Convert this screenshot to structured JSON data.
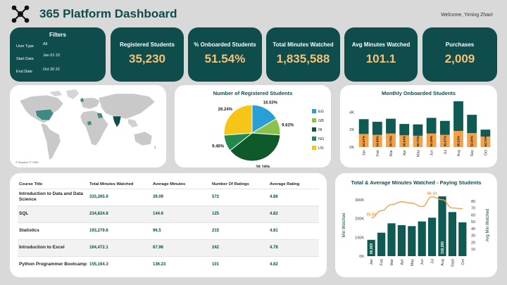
{
  "header": {
    "title": "365 Platform Dashboard",
    "welcome": "Welcome, Yiming Zhao!"
  },
  "filters": {
    "title": "Filters",
    "items": [
      {
        "label": "User Type",
        "value": "All"
      },
      {
        "label": "Start Date",
        "value": "Jan 01 22"
      },
      {
        "label": "End Date",
        "value": "Oct 20 22"
      }
    ]
  },
  "kpis": [
    {
      "label": "Registered Students",
      "value": "35,230"
    },
    {
      "label": "% Onboarded Students",
      "value": "51.54%"
    },
    {
      "label": "Total Minutes Watched",
      "value": "1,835,588"
    },
    {
      "label": "Avg Minutes Watched",
      "value": "101.1"
    },
    {
      "label": "Purchases",
      "value": "2,009"
    }
  ],
  "map": {
    "credit": "© Mapbox © OSM"
  },
  "colors": {
    "teal_dark": "#0e4d4b",
    "accent_gold": "#f5c27a",
    "bar_teal": "#0f5a52",
    "bar_orange": "#f2a04a",
    "line_orange": "#f2a04a"
  },
  "chart_data": [
    {
      "type": "pie",
      "title": "Number of Registered Students",
      "legend": [
        "EG",
        "GB",
        "IN",
        "NG",
        "US"
      ],
      "legend_position": "right",
      "slices": [
        {
          "name": "EG",
          "value": 16.53,
          "label": "16.53%",
          "color": "#2a9fd6"
        },
        {
          "name": "GB",
          "value": 9.62,
          "label": "9.62%",
          "color": "#8bc34a"
        },
        {
          "name": "IN",
          "value": 38.16,
          "label": "38.16%",
          "color": "#0f5a2a"
        },
        {
          "name": "NG",
          "value": 9.46,
          "label": "9.46%",
          "color": "#1f8a4c"
        },
        {
          "name": "US",
          "value": 26.24,
          "label": "26.24%",
          "color": "#f5c518"
        }
      ]
    },
    {
      "type": "bar",
      "title": "Monthly Onboarded Students",
      "categories": [
        "Jan",
        "Feb",
        "Mar",
        "Apr",
        "May",
        "Jun",
        "Jul",
        "Aug",
        "Sep",
        "Oct"
      ],
      "y_ticks": [
        "0K",
        "2K",
        "4K"
      ],
      "ylim": [
        0,
        5000
      ],
      "series": [
        {
          "values": [
            1500,
            1400,
            1550,
            1350,
            1300,
            1550,
            1400,
            1850,
            1600,
            1200
          ],
          "labels": [
            "64.57%",
            "54.88%",
            "50.79%",
            "58.04%",
            "50.73%",
            "56.29%",
            "49.57%",
            "48.23%",
            "52.60%",
            "64.74%"
          ],
          "color": "#f2a04a"
        },
        {
          "values": [
            1700,
            1500,
            1700,
            1300,
            1300,
            1800,
            1600,
            3400,
            2100,
            800
          ],
          "color": "#0f5a52"
        }
      ]
    },
    {
      "type": "bar",
      "title": "Total & Average Minutes Watched - Paying Students",
      "categories": [
        "Jan",
        "Feb",
        "Mar",
        "Apr",
        "May",
        "Jun",
        "Jul",
        "Aug",
        "Sept",
        "Oct"
      ],
      "ylabel": "Min Watched",
      "ylabel_right": "Avg Min Watched",
      "y_ticks": [
        "0K",
        "100K",
        "200K",
        "300K"
      ],
      "y2_ticks": [
        "10",
        "20",
        "30",
        "40",
        "50",
        "60",
        "70",
        "80"
      ],
      "ylim": [
        0,
        330000
      ],
      "y2lim": [
        0,
        90
      ],
      "series": [
        {
          "name": "Total Minutes",
          "values": [
            86953,
            125000,
            175000,
            165000,
            160000,
            185000,
            205000,
            318585,
            235000,
            180000
          ],
          "labels": [
            "86,953",
            "",
            "",
            "",
            "",
            "",
            "",
            "318,585",
            "",
            ""
          ],
          "color": "#0f5a52"
        },
        {
          "name": "Avg Minutes",
          "type": "line",
          "values": [
            55.65,
            66,
            75,
            79,
            77,
            72,
            86.24,
            82,
            70,
            69
          ],
          "labels": [
            "55.65",
            "",
            "",
            "",
            "",
            "",
            "86.24",
            "",
            "",
            ""
          ],
          "color": "#f2a04a"
        }
      ]
    }
  ],
  "table": {
    "headers": [
      "Course Title",
      "Total Minutes Watched",
      "Average Minutes",
      "Number Of Ratings",
      "Average Rating"
    ],
    "rows": [
      {
        "title": "Introduction to Data and Data Science",
        "total": "333,265.9",
        "avg": "39.09",
        "ratings": "572",
        "rating": "4.86"
      },
      {
        "title": "SQL",
        "total": "234,824.8",
        "avg": "144.6",
        "ratings": "125",
        "rating": "4.82"
      },
      {
        "title": "Statistics",
        "total": "193,279.6",
        "avg": "96.5",
        "ratings": "215",
        "rating": "4.81"
      },
      {
        "title": "Introduction to Excel",
        "total": "164,472.1",
        "avg": "67.96",
        "ratings": "242",
        "rating": "4.78"
      },
      {
        "title": "Python Programmer Bootcamp",
        "total": "155,164.3",
        "avg": "136.23",
        "ratings": "101",
        "rating": "4.82"
      }
    ]
  }
}
